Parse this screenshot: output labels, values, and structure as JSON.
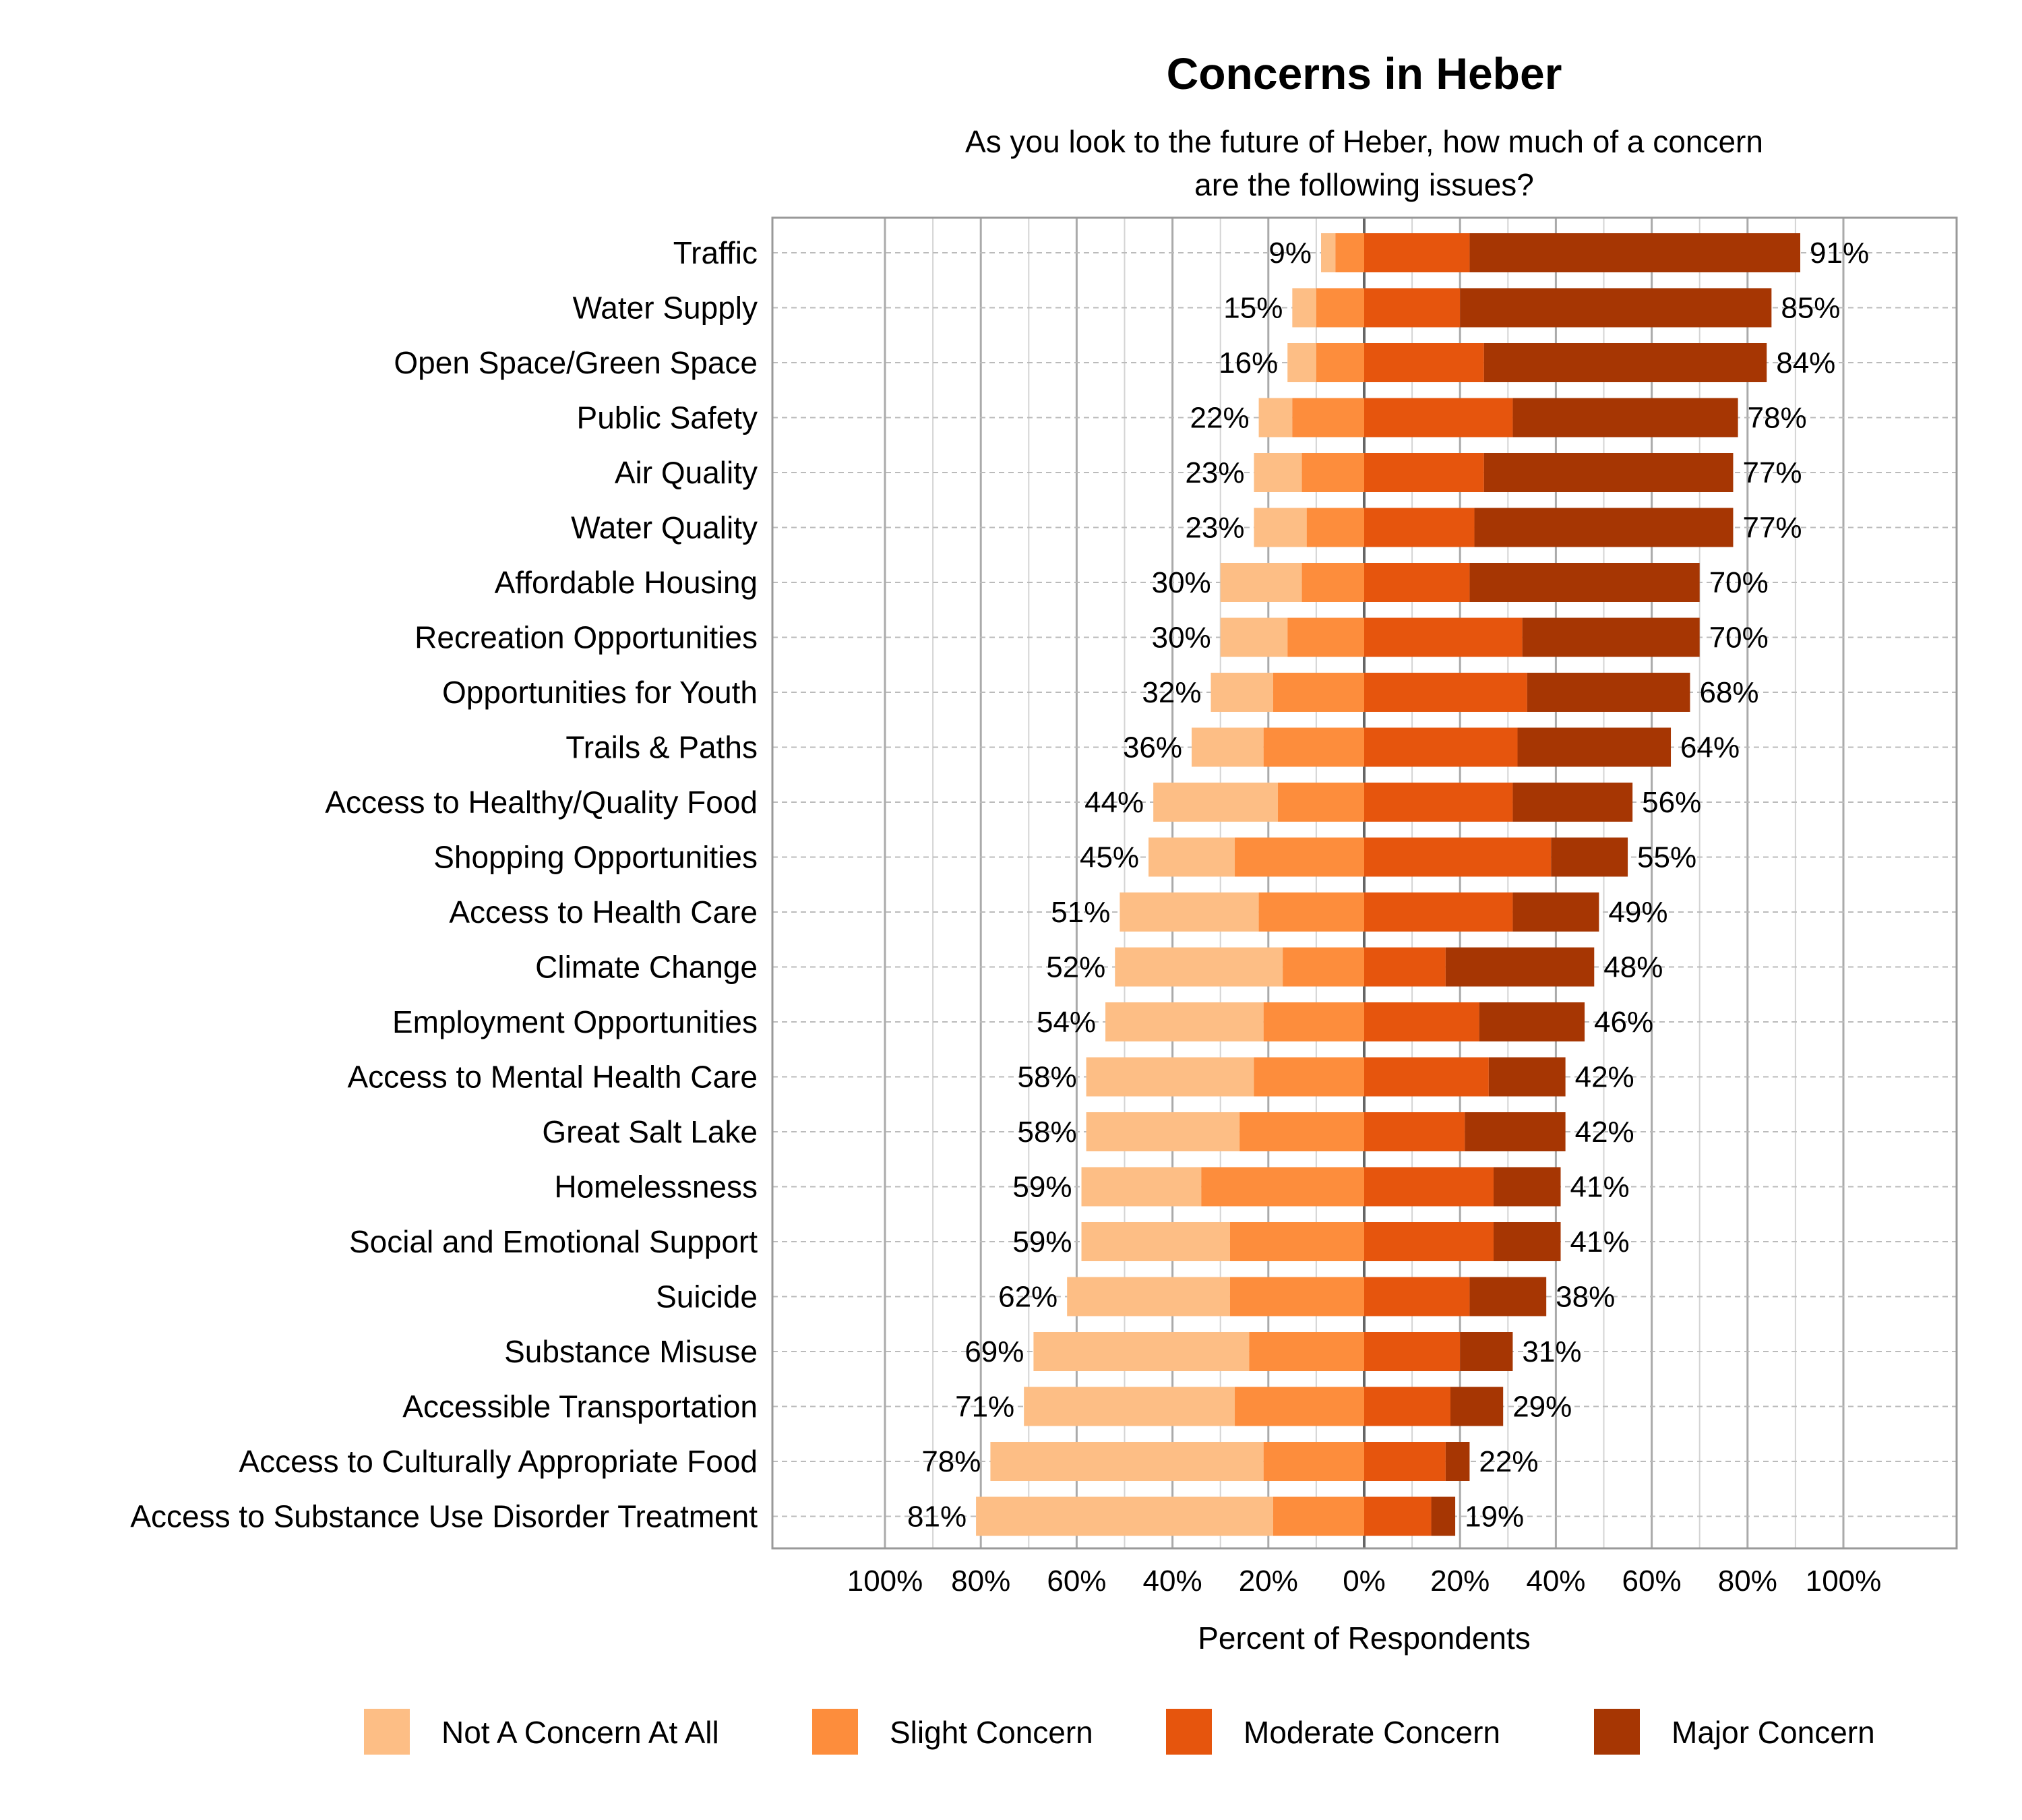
{
  "chart_data": {
    "type": "bar",
    "subtype": "diverging-stacked-horizontal",
    "title": "Concerns in Heber",
    "subtitle": [
      "As you look to the future of Heber, how much of a concern",
      "are the following issues?"
    ],
    "xlabel": "Percent of Respondents",
    "ylabel": "",
    "xlim": [
      -100,
      100
    ],
    "x_ticks": [
      "100%",
      "80%",
      "60%",
      "40%",
      "20%",
      "0%",
      "20%",
      "40%",
      "60%",
      "80%",
      "100%"
    ],
    "grid": true,
    "legend_position": "bottom",
    "colors": {
      "Not A Concern At All": "#FDBE85",
      "Slight Concern": "#FD8D3C",
      "Moderate Concern": "#E6550D",
      "Major Concern": "#A63603"
    },
    "categories": [
      "Traffic",
      "Water Supply",
      "Open Space/Green Space",
      "Public Safety",
      "Air Quality",
      "Water Quality",
      "Affordable Housing",
      "Recreation Opportunities",
      "Opportunities for Youth",
      "Trails & Paths",
      "Access to Healthy/Quality Food",
      "Shopping Opportunities",
      "Access to Health Care",
      "Climate Change",
      "Employment Opportunities",
      "Access to Mental Health Care",
      "Great Salt Lake",
      "Homelessness",
      "Social and Emotional Support",
      "Suicide",
      "Substance Misuse",
      "Accessible Transportation",
      "Access to Culturally Appropriate Food",
      "Access to Substance Use Disorder Treatment"
    ],
    "series": [
      {
        "name": "Not A Concern At All",
        "side": "negative",
        "values": [
          3,
          5,
          6,
          7,
          10,
          11,
          17,
          14,
          13,
          15,
          26,
          18,
          29,
          35,
          33,
          35,
          32,
          25,
          31,
          34,
          45,
          44,
          57,
          62
        ]
      },
      {
        "name": "Slight Concern",
        "side": "negative",
        "values": [
          6,
          10,
          10,
          15,
          13,
          12,
          13,
          16,
          19,
          21,
          18,
          27,
          22,
          17,
          21,
          23,
          26,
          34,
          28,
          28,
          24,
          27,
          21,
          19
        ]
      },
      {
        "name": "Moderate Concern",
        "side": "positive",
        "values": [
          22,
          20,
          25,
          31,
          25,
          23,
          22,
          33,
          34,
          32,
          31,
          39,
          31,
          17,
          24,
          26,
          21,
          27,
          27,
          22,
          20,
          18,
          17,
          14
        ]
      },
      {
        "name": "Major Concern",
        "side": "positive",
        "values": [
          69,
          65,
          59,
          47,
          52,
          54,
          48,
          37,
          34,
          32,
          25,
          16,
          18,
          31,
          22,
          16,
          21,
          14,
          14,
          16,
          11,
          11,
          5,
          5
        ]
      }
    ],
    "left_labels": [
      "9%",
      "15%",
      "16%",
      "22%",
      "23%",
      "23%",
      "30%",
      "30%",
      "32%",
      "36%",
      "44%",
      "45%",
      "51%",
      "52%",
      "54%",
      "58%",
      "58%",
      "59%",
      "59%",
      "62%",
      "69%",
      "71%",
      "78%",
      "81%"
    ],
    "right_labels": [
      "91%",
      "85%",
      "84%",
      "78%",
      "77%",
      "77%",
      "70%",
      "70%",
      "68%",
      "64%",
      "56%",
      "55%",
      "49%",
      "48%",
      "46%",
      "42%",
      "42%",
      "41%",
      "41%",
      "38%",
      "31%",
      "29%",
      "22%",
      "19%"
    ]
  }
}
